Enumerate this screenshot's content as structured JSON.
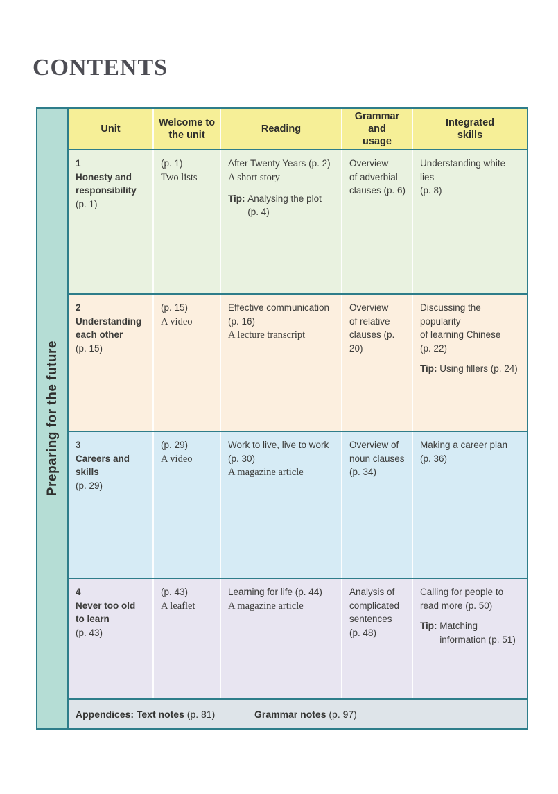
{
  "page_title": "CONTENTS",
  "sidebar_label": "Preparing for the future",
  "colors": {
    "border": "#2e7d8a",
    "sidebar_bg": "#b5ddd5",
    "header_bg": "#f6ef97",
    "row1_bg": "#e9f2e0",
    "row2_bg": "#fcefdf",
    "row3_bg": "#d6ebf5",
    "row4_bg": "#e8e5f1",
    "footer_bg": "#dee4e9"
  },
  "headers": {
    "unit": "Unit",
    "welcome": "Welcome to\nthe unit",
    "reading": "Reading",
    "grammar": "Grammar\nand\nusage",
    "integrated": "Integrated\nskills"
  },
  "rows": [
    {
      "unit_number": "1",
      "unit_name": "Honesty and\nresponsibility",
      "unit_page": "(p. 1)",
      "welcome_page": "(p. 1)",
      "welcome_item": "Two lists",
      "reading_title": "After Twenty Years (p. 2)",
      "reading_genre": "A short story",
      "reading_tip_label": "Tip:",
      "reading_tip_text": "Analysing the plot\n(p. 4)",
      "grammar": "Overview\nof adverbial\nclauses (p. 6)",
      "integrated_text": "Understanding white lies\n(p. 8)"
    },
    {
      "unit_number": "2",
      "unit_name": "Understanding\neach other",
      "unit_page": "(p. 15)",
      "welcome_page": "(p. 15)",
      "welcome_item": "A video",
      "reading_title": "Effective communication\n(p. 16)",
      "reading_genre": "A lecture transcript",
      "grammar": "Overview\nof relative\nclauses (p. 20)",
      "integrated_text": "Discussing the popularity\nof learning Chinese\n(p. 22)",
      "integrated_tip_label": "Tip:",
      "integrated_tip_text": "Using fillers (p. 24)"
    },
    {
      "unit_number": "3",
      "unit_name": "Careers and\nskills",
      "unit_page": "(p. 29)",
      "welcome_page": "(p. 29)",
      "welcome_item": "A video",
      "reading_title": "Work to live, live to work\n(p. 30)",
      "reading_genre": "A magazine article",
      "grammar": "Overview of\nnoun clauses\n(p. 34)",
      "integrated_text": "Making a career plan\n(p. 36)"
    },
    {
      "unit_number": "4",
      "unit_name": "Never too old\nto learn",
      "unit_page": "(p. 43)",
      "welcome_page": "(p. 43)",
      "welcome_item": "A leaflet",
      "reading_title": "Learning for life (p. 44)",
      "reading_genre": "A magazine article",
      "grammar": "Analysis of\ncomplicated\nsentences\n(p. 48)",
      "integrated_text": "Calling for people to\nread more (p. 50)",
      "integrated_tip_label": "Tip:",
      "integrated_tip_text": "Matching\ninformation (p. 51)"
    }
  ],
  "footer": {
    "appendices_label": "Appendices: Text notes",
    "appendices_page": "(p. 81)",
    "grammar_label": "Grammar notes",
    "grammar_page": "(p. 97)"
  }
}
